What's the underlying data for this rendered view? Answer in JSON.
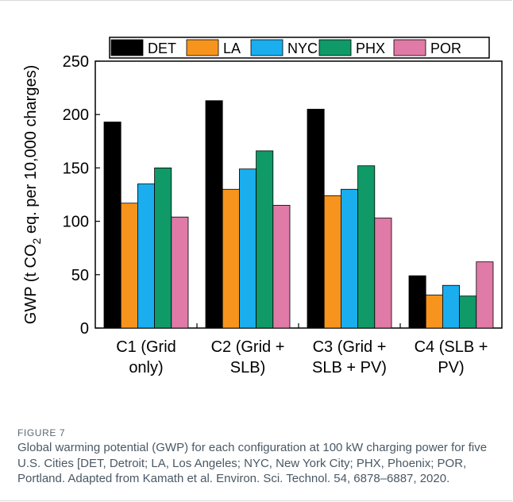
{
  "chart_data": {
    "type": "bar",
    "ylabel": "GWP (t CO2 eq. per 10,000 charges)",
    "ylim": [
      0,
      250
    ],
    "yticks": [
      0,
      50,
      100,
      150,
      200,
      250
    ],
    "categories": [
      "C1 (Grid only)",
      "C2 (Grid + SLB)",
      "C3 (Grid + SLB + PV)",
      "C4 (SLB + PV)"
    ],
    "category_lines": [
      [
        "C1 (Grid",
        "only)"
      ],
      [
        "C2 (Grid +",
        "SLB)"
      ],
      [
        "C3 (Grid +",
        "SLB + PV)"
      ],
      [
        "C4 (SLB +",
        "PV)"
      ]
    ],
    "legend_position": "top",
    "series": [
      {
        "name": "DET",
        "color": "#000000",
        "values": [
          193,
          213,
          205,
          49
        ]
      },
      {
        "name": "LA",
        "color": "#f7941d",
        "values": [
          117,
          130,
          124,
          31
        ]
      },
      {
        "name": "NYC",
        "color": "#1aaeef",
        "values": [
          135,
          149,
          130,
          40
        ]
      },
      {
        "name": "PHX",
        "color": "#0f9a68",
        "values": [
          150,
          166,
          152,
          30
        ]
      },
      {
        "name": "POR",
        "color": "#e07aa7",
        "values": [
          104,
          115,
          103,
          62
        ]
      }
    ]
  },
  "caption": {
    "label": "FIGURE 7",
    "text": "Global warming potential (GWP) for each configuration at 100 kW charging power for five U.S. Cities [DET, Detroit; LA, Los Angeles; NYC, New York City; PHX, Phoenix; POR, Portland. Adapted from Kamath et al. Environ. Sci. Technol. 54, 6878–6887, 2020."
  }
}
